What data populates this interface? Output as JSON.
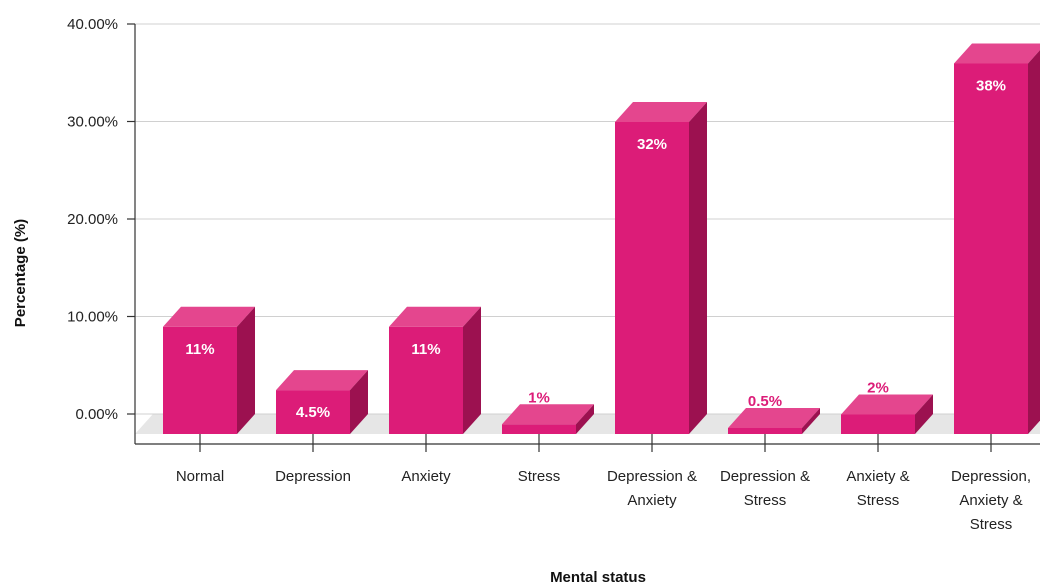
{
  "chart_data": {
    "type": "bar",
    "style": "3d-column",
    "categories": [
      [
        "Normal"
      ],
      [
        "Depression"
      ],
      [
        "Anxiety"
      ],
      [
        "Stress"
      ],
      [
        "Depression &",
        "Anxiety"
      ],
      [
        "Depression &",
        "Stress"
      ],
      [
        "Anxiety &",
        "Stress"
      ],
      [
        "Depression,",
        "Anxiety &",
        "Stress"
      ]
    ],
    "values": [
      11,
      4.5,
      11,
      1,
      32,
      0.5,
      2,
      38
    ],
    "data_labels": [
      "11%",
      "4.5%",
      "11%",
      "1%",
      "32%",
      "0.5%",
      "2%",
      "38%"
    ],
    "yticks": [
      "0.00%",
      "10.00%",
      "20.00%",
      "30.00%",
      "40.00%"
    ],
    "ylim": [
      0,
      40
    ],
    "xlabel": "Mental status",
    "ylabel": "Percentage (%)",
    "grid": true,
    "colors": {
      "front": "#dc1c78",
      "top": "#e4468e",
      "side": "#9c1150",
      "label_inside": "#ffffff",
      "label_outside": "#dc1c78",
      "floor": "#e6e6e6",
      "grid": "#d0d0d0"
    }
  }
}
